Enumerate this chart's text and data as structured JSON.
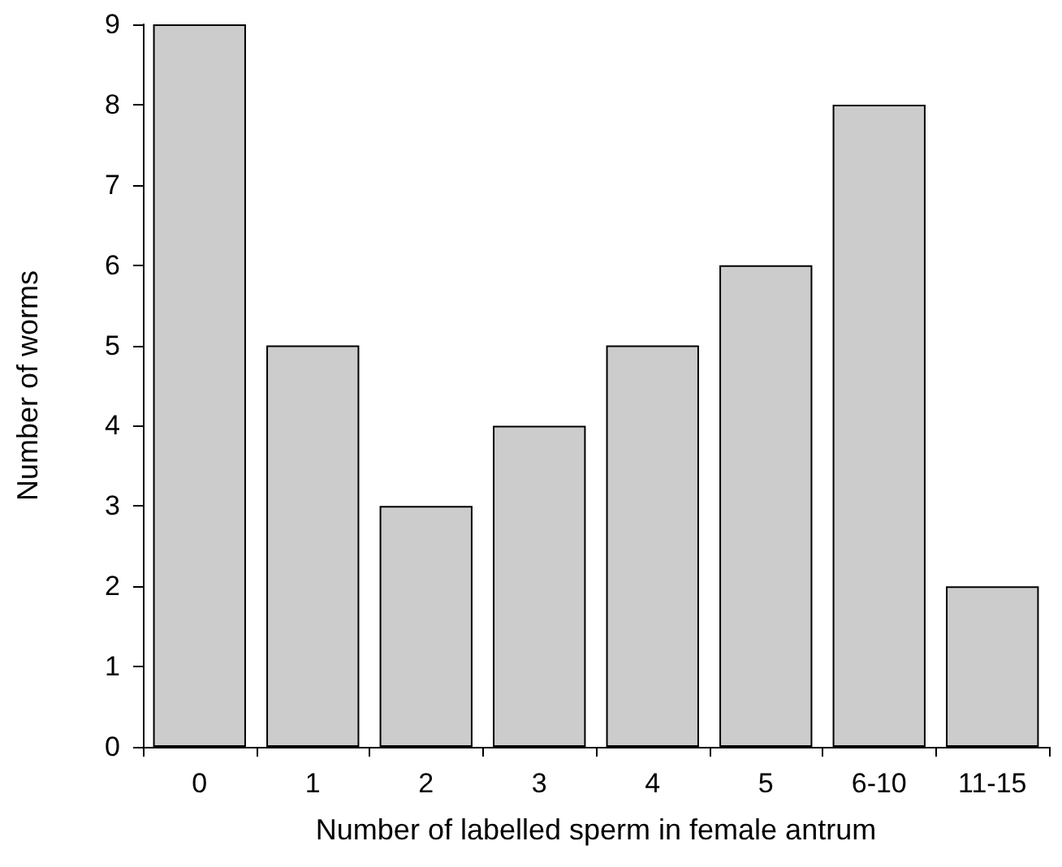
{
  "chart_data": {
    "type": "bar",
    "xlabel": "Number of labelled sperm in female antrum",
    "ylabel": "Number of worms",
    "categories": [
      "0",
      "1",
      "2",
      "3",
      "4",
      "5",
      "6-10",
      "11-15"
    ],
    "values": [
      9,
      5,
      3,
      4,
      5,
      6,
      8,
      2
    ],
    "color": "#cccccc",
    "ylim": [
      0,
      9
    ],
    "yticks": [
      0,
      1,
      2,
      3,
      4,
      5,
      6,
      7,
      8,
      9
    ],
    "grid": false
  }
}
